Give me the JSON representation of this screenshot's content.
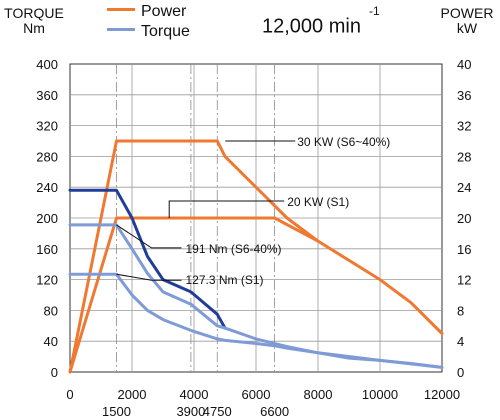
{
  "header": {
    "left_axis_title": "TORQUE",
    "left_axis_unit": "Nm",
    "right_axis_title": "POWER",
    "right_axis_unit": "kW",
    "speed_value": "12,000 min",
    "speed_exponent": "-1"
  },
  "chart_data": {
    "type": "line",
    "title": "12,000 min -1",
    "x_range": [
      0,
      12000
    ],
    "x_ticks": [
      0,
      2000,
      4000,
      6000,
      8000,
      10000,
      12000
    ],
    "x_tick_labels": [
      "0",
      "2000",
      "4000",
      "6000",
      "8000",
      "10000",
      "12000"
    ],
    "x_marked_speeds": [
      1500,
      3900,
      4750,
      6600
    ],
    "x_marked_speed_labels": [
      "1500",
      "3900",
      "4750",
      "6600"
    ],
    "y_left": {
      "title": "TORQUE",
      "unit": "Nm",
      "range": [
        0,
        400
      ],
      "ticks": [
        0,
        40,
        80,
        120,
        160,
        200,
        240,
        280,
        320,
        360,
        400
      ],
      "tick_labels": [
        "0",
        "40",
        "80",
        "120",
        "160",
        "200",
        "240",
        "280",
        "320",
        "360",
        "400"
      ]
    },
    "y_right": {
      "title": "POWER",
      "unit": "kW",
      "range": [
        0,
        40
      ],
      "ticks": [
        0,
        4,
        8,
        12,
        16,
        20,
        24,
        28,
        32,
        36,
        40
      ],
      "tick_labels": [
        "0",
        "4",
        "8",
        "12",
        "16",
        "20",
        "24",
        "28",
        "32",
        "36",
        "40"
      ]
    },
    "grid": true,
    "legend_position": "top-left",
    "legend": [
      {
        "name": "Power",
        "color": "#f07830"
      },
      {
        "name": "Torque",
        "color": "#7f9bd6"
      }
    ],
    "series": [
      {
        "name": "Power",
        "axis": "right",
        "color": "#f07830",
        "points": [
          [
            0,
            0
          ],
          [
            1500,
            30
          ],
          [
            4750,
            30
          ],
          [
            5000,
            28
          ],
          [
            6000,
            24
          ],
          [
            7000,
            20
          ],
          [
            8000,
            17
          ],
          [
            10000,
            12
          ],
          [
            11000,
            9
          ],
          [
            12000,
            5
          ]
        ]
      },
      {
        "name": "Power",
        "axis": "right",
        "color": "#f07830",
        "points": [
          [
            0,
            0
          ],
          [
            1500,
            20
          ],
          [
            6600,
            20
          ],
          [
            8000,
            17
          ]
        ]
      },
      {
        "name": "Torque",
        "axis": "left",
        "color": "#1f3d99",
        "points": [
          [
            0,
            236
          ],
          [
            1500,
            236
          ],
          [
            2000,
            200
          ],
          [
            2500,
            150
          ],
          [
            3000,
            120
          ],
          [
            3900,
            104
          ],
          [
            4750,
            75
          ],
          [
            5000,
            57
          ]
        ]
      },
      {
        "name": "Torque",
        "axis": "left",
        "color": "#7f9bd6",
        "points": [
          [
            0,
            191
          ],
          [
            1500,
            191
          ],
          [
            2000,
            160
          ],
          [
            2500,
            128
          ],
          [
            3000,
            104
          ],
          [
            3900,
            88
          ],
          [
            4750,
            60
          ],
          [
            5000,
            57
          ],
          [
            6000,
            43
          ],
          [
            7000,
            33
          ],
          [
            8000,
            25
          ],
          [
            9000,
            18
          ],
          [
            10000,
            15
          ],
          [
            11000,
            11
          ],
          [
            12000,
            6
          ]
        ]
      },
      {
        "name": "Torque",
        "axis": "left",
        "color": "#7f9bd6",
        "points": [
          [
            0,
            127
          ],
          [
            1500,
            127
          ],
          [
            2000,
            100
          ],
          [
            2500,
            80
          ],
          [
            3000,
            68
          ],
          [
            3900,
            54
          ],
          [
            4750,
            43
          ],
          [
            5000,
            41
          ],
          [
            6000,
            37
          ],
          [
            6600,
            34
          ],
          [
            7000,
            31
          ],
          [
            8000,
            25
          ],
          [
            10000,
            15
          ],
          [
            12000,
            6
          ]
        ]
      }
    ],
    "annotations": [
      {
        "text": "30 KW (S6~40%)",
        "x": 4750,
        "y": 30,
        "axis": "right"
      },
      {
        "text": "20 KW (S1)",
        "x": 3200,
        "y": 20,
        "axis": "right"
      },
      {
        "text": "191 Nm (S6-40%)",
        "x": 1500,
        "y": 191,
        "axis": "left"
      },
      {
        "text": "127.3 Nm (S1)",
        "x": 1500,
        "y": 127,
        "axis": "left"
      }
    ]
  }
}
